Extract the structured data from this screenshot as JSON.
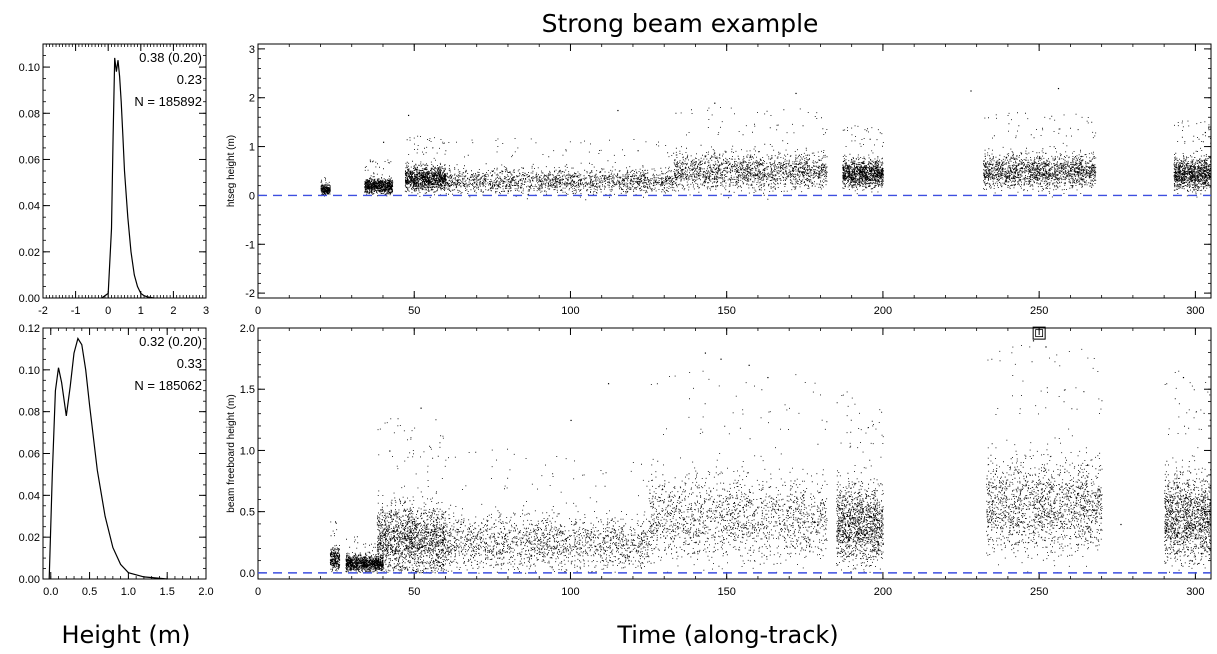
{
  "figure": {
    "title": "Strong beam example",
    "hist_xlabel": "Height (m)",
    "time_xlabel": "Time (along-track)"
  },
  "chart_data": [
    {
      "id": "hist_top",
      "type": "line",
      "x": [
        -0.2,
        0.0,
        0.1,
        0.15,
        0.2,
        0.25,
        0.3,
        0.35,
        0.4,
        0.45,
        0.5,
        0.6,
        0.7,
        0.8,
        0.9,
        1.0,
        1.1,
        1.2,
        1.4
      ],
      "y": [
        0.0,
        0.002,
        0.03,
        0.07,
        0.104,
        0.098,
        0.103,
        0.096,
        0.085,
        0.07,
        0.055,
        0.035,
        0.02,
        0.01,
        0.005,
        0.002,
        0.001,
        0.0005,
        0.0
      ],
      "xlim": [
        -2,
        3
      ],
      "ylim": [
        0,
        0.11
      ],
      "xticks": [
        "-2",
        "-1",
        "0",
        "1",
        "2",
        "3"
      ],
      "yticks": [
        "0.00",
        "0.02",
        "0.04",
        "0.06",
        "0.08",
        "0.10"
      ],
      "annotations": [
        "0.38 (0.20)",
        "0.23",
        "N = 185892"
      ],
      "color": "#000000"
    },
    {
      "id": "hist_bottom",
      "type": "line",
      "x": [
        -0.02,
        0.02,
        0.06,
        0.1,
        0.14,
        0.2,
        0.25,
        0.3,
        0.35,
        0.4,
        0.45,
        0.5,
        0.6,
        0.7,
        0.8,
        0.9,
        1.0,
        1.2,
        1.5
      ],
      "y": [
        0.0,
        0.05,
        0.09,
        0.101,
        0.094,
        0.078,
        0.092,
        0.108,
        0.115,
        0.112,
        0.1,
        0.083,
        0.052,
        0.03,
        0.015,
        0.007,
        0.003,
        0.001,
        0.0
      ],
      "xlim": [
        -0.1,
        2.0
      ],
      "ylim": [
        0,
        0.12
      ],
      "xticks": [
        "0.0",
        "0.5",
        "1.0",
        "1.5",
        "2.0"
      ],
      "yticks": [
        "0.00",
        "0.02",
        "0.04",
        "0.06",
        "0.08",
        "0.10",
        "0.12"
      ],
      "annotations": [
        "0.32 (0.20)",
        "0.33",
        "N = 185062"
      ],
      "color": "#000000"
    },
    {
      "id": "time_top",
      "type": "scatter",
      "ylabel": "htseg height (m)",
      "xlim": [
        0,
        305
      ],
      "ylim": [
        -2.1,
        3.1
      ],
      "xticks": [
        "0",
        "50",
        "100",
        "150",
        "200",
        "250",
        "300"
      ],
      "yticks": [
        "-2",
        "-1",
        "0",
        "1",
        "2",
        "3"
      ],
      "reference_line": {
        "y": 0,
        "style": "dashed",
        "color": "#3d4fe0"
      },
      "point_color": "#000000",
      "segments": [
        {
          "x": [
            20,
            23
          ],
          "mean": 0.12,
          "spread": 0.15
        },
        {
          "x": [
            34,
            43
          ],
          "mean": 0.2,
          "spread": 0.25
        },
        {
          "x": [
            47,
            60
          ],
          "mean": 0.35,
          "spread": 0.4
        },
        {
          "x": [
            60,
            133
          ],
          "mean": 0.3,
          "spread": 0.4
        },
        {
          "x": [
            133,
            182
          ],
          "mean": 0.5,
          "spread": 0.6
        },
        {
          "x": [
            187,
            200
          ],
          "mean": 0.45,
          "spread": 0.45
        },
        {
          "x": [
            232,
            268
          ],
          "mean": 0.5,
          "spread": 0.55
        },
        {
          "x": [
            293,
            305
          ],
          "mean": 0.45,
          "spread": 0.5
        }
      ],
      "outliers": [
        [
          40,
          1.1
        ],
        [
          48,
          1.65
        ],
        [
          115,
          1.75
        ],
        [
          146,
          1.9
        ],
        [
          172,
          2.1
        ],
        [
          228,
          2.15
        ],
        [
          256,
          2.2
        ],
        [
          303,
          1.3
        ]
      ]
    },
    {
      "id": "time_bottom",
      "type": "scatter",
      "ylabel": "beam freeboard height (m)",
      "xlim": [
        0,
        305
      ],
      "ylim": [
        -0.05,
        2.0
      ],
      "xticks": [
        "0",
        "50",
        "100",
        "150",
        "200",
        "250",
        "300"
      ],
      "yticks": [
        "0.0",
        "0.5",
        "1.0",
        "1.5",
        "2.0"
      ],
      "reference_line": {
        "y": 0,
        "style": "dashed",
        "color": "#3d4fe0"
      },
      "point_color": "#000000",
      "marker": {
        "x": 250,
        "y": 1.95,
        "shape": "square"
      },
      "segments": [
        {
          "x": [
            23,
            26
          ],
          "mean": 0.12,
          "spread": 0.15
        },
        {
          "x": [
            28,
            40
          ],
          "mean": 0.08,
          "spread": 0.1
        },
        {
          "x": [
            38,
            60
          ],
          "mean": 0.28,
          "spread": 0.45
        },
        {
          "x": [
            60,
            125
          ],
          "mean": 0.25,
          "spread": 0.35
        },
        {
          "x": [
            125,
            182
          ],
          "mean": 0.45,
          "spread": 0.55
        },
        {
          "x": [
            185,
            200
          ],
          "mean": 0.4,
          "spread": 0.5
        },
        {
          "x": [
            233,
            270
          ],
          "mean": 0.55,
          "spread": 0.6
        },
        {
          "x": [
            290,
            305
          ],
          "mean": 0.45,
          "spread": 0.55
        }
      ],
      "outliers": [
        [
          42,
          1.0
        ],
        [
          52,
          1.35
        ],
        [
          100,
          1.25
        ],
        [
          112,
          1.55
        ],
        [
          143,
          1.8
        ],
        [
          148,
          1.75
        ],
        [
          157,
          1.7
        ],
        [
          163,
          1.6
        ],
        [
          248,
          1.9
        ],
        [
          252,
          1.85
        ],
        [
          276,
          0.4
        ],
        [
          296,
          1.6
        ]
      ]
    }
  ]
}
